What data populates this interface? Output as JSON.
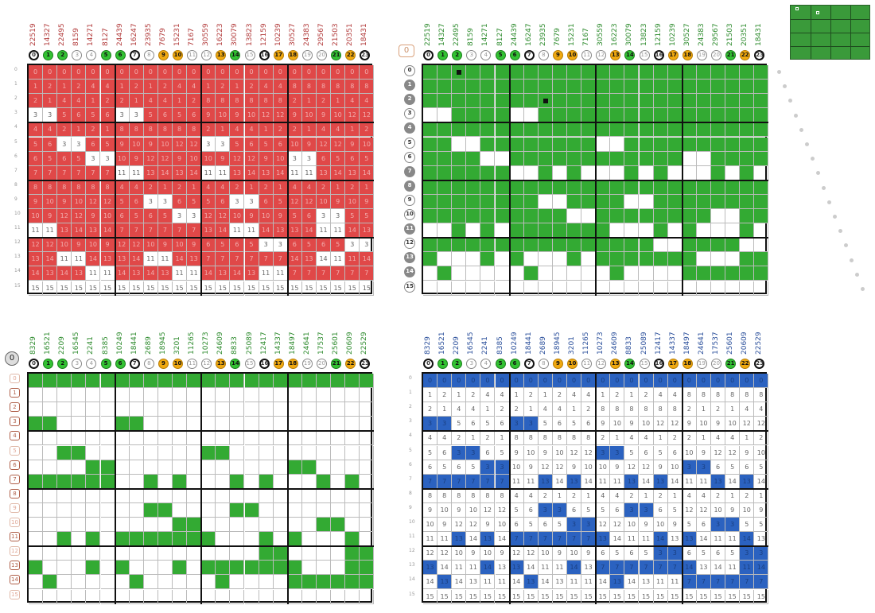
{
  "panels": {
    "tl": {
      "headers": [
        "22519",
        "14327",
        "22495",
        "8159",
        "14271",
        "8127",
        "24439",
        "16247",
        "23935",
        "7679",
        "15231",
        "7167",
        "30559",
        "16223",
        "30079",
        "13823",
        "12159",
        "10239",
        "30527",
        "24383",
        "29567",
        "21503",
        "20351",
        "18431"
      ],
      "headerColor": "#b23b3b"
    },
    "tr": {
      "headers": [
        "22519",
        "14327",
        "22495",
        "8159",
        "14271",
        "8127",
        "24439",
        "16247",
        "23935",
        "7679",
        "15231",
        "7167",
        "30559",
        "16223",
        "30079",
        "13823",
        "12159",
        "10239",
        "30527",
        "24383",
        "29567",
        "21503",
        "20351",
        "18431"
      ],
      "headerColor": "#2e8b2e",
      "box": "0"
    },
    "bl": {
      "headers": [
        "8329",
        "16521",
        "2209",
        "16545",
        "2241",
        "8385",
        "10249",
        "18441",
        "2689",
        "18945",
        "3201",
        "11265",
        "10273",
        "24609",
        "8833",
        "25089",
        "12417",
        "14337",
        "18497",
        "24641",
        "17537",
        "25601",
        "20609",
        "22529"
      ],
      "headerColor": "#2e8b2e",
      "circle": "0"
    },
    "br": {
      "headers": [
        "8329",
        "16521",
        "2209",
        "16545",
        "2241",
        "8385",
        "10249",
        "18441",
        "2689",
        "18945",
        "3201",
        "11265",
        "10273",
        "24609",
        "8833",
        "25089",
        "12417",
        "14337",
        "18497",
        "24641",
        "17537",
        "25601",
        "20609",
        "22529"
      ],
      "headerColor": "#2a4f9b"
    }
  },
  "colIndex": [
    "0",
    "1",
    "2",
    "3",
    "4",
    "5",
    "6",
    "7",
    "8",
    "9",
    "10",
    "11",
    "12",
    "13",
    "14",
    "15",
    "16",
    "17",
    "18",
    "19",
    "20",
    "21",
    "22",
    "23"
  ],
  "rowIndex": [
    "0",
    "1",
    "2",
    "3",
    "4",
    "5",
    "6",
    "7",
    "8",
    "9",
    "10",
    "11",
    "12",
    "13",
    "14",
    "15"
  ],
  "grid": [
    [
      "0",
      "0",
      "0",
      "0",
      "0",
      "0",
      "0",
      "0",
      "0",
      "0",
      "0",
      "0",
      "0",
      "0",
      "0",
      "0",
      "0",
      "0",
      "0",
      "0",
      "0",
      "0",
      "0",
      "0"
    ],
    [
      "1",
      "2",
      "1",
      "2",
      "4",
      "4",
      "1",
      "2",
      "1",
      "2",
      "4",
      "4",
      "1",
      "2",
      "1",
      "2",
      "4",
      "4",
      "8",
      "8",
      "8",
      "8",
      "8",
      "8"
    ],
    [
      "2",
      "1",
      "4",
      "4",
      "1",
      "2",
      "2",
      "1",
      "4",
      "4",
      "1",
      "2",
      "8",
      "8",
      "8",
      "8",
      "8",
      "8",
      "2",
      "1",
      "2",
      "1",
      "4",
      "4"
    ],
    [
      "3",
      "3",
      "5",
      "6",
      "5",
      "6",
      "3",
      "3",
      "5",
      "6",
      "5",
      "6",
      "9",
      "10",
      "9",
      "10",
      "12",
      "12",
      "9",
      "10",
      "9",
      "10",
      "12",
      "12"
    ],
    [
      "4",
      "4",
      "2",
      "1",
      "2",
      "1",
      "8",
      "8",
      "8",
      "8",
      "8",
      "8",
      "2",
      "1",
      "4",
      "4",
      "1",
      "2",
      "2",
      "1",
      "4",
      "4",
      "1",
      "2"
    ],
    [
      "5",
      "6",
      "3",
      "3",
      "6",
      "5",
      "9",
      "10",
      "9",
      "10",
      "12",
      "12",
      "3",
      "3",
      "5",
      "6",
      "5",
      "6",
      "10",
      "9",
      "12",
      "12",
      "9",
      "10"
    ],
    [
      "6",
      "5",
      "6",
      "5",
      "3",
      "3",
      "10",
      "9",
      "12",
      "12",
      "9",
      "10",
      "10",
      "9",
      "12",
      "12",
      "9",
      "10",
      "3",
      "3",
      "6",
      "5",
      "6",
      "5"
    ],
    [
      "7",
      "7",
      "7",
      "7",
      "7",
      "7",
      "11",
      "11",
      "13",
      "14",
      "13",
      "14",
      "11",
      "11",
      "13",
      "14",
      "13",
      "14",
      "11",
      "11",
      "13",
      "14",
      "13",
      "14"
    ],
    [
      "8",
      "8",
      "8",
      "8",
      "8",
      "8",
      "4",
      "4",
      "2",
      "1",
      "2",
      "1",
      "4",
      "4",
      "2",
      "1",
      "2",
      "1",
      "4",
      "4",
      "2",
      "1",
      "2",
      "1"
    ],
    [
      "9",
      "10",
      "9",
      "10",
      "12",
      "12",
      "5",
      "6",
      "3",
      "3",
      "6",
      "5",
      "5",
      "6",
      "3",
      "3",
      "6",
      "5",
      "12",
      "12",
      "10",
      "9",
      "10",
      "9"
    ],
    [
      "10",
      "9",
      "12",
      "12",
      "9",
      "10",
      "6",
      "5",
      "6",
      "5",
      "3",
      "3",
      "12",
      "12",
      "10",
      "9",
      "10",
      "9",
      "5",
      "6",
      "3",
      "3",
      "5",
      "5"
    ],
    [
      "11",
      "11",
      "13",
      "14",
      "13",
      "14",
      "7",
      "7",
      "7",
      "7",
      "7",
      "7",
      "13",
      "14",
      "11",
      "11",
      "14",
      "13",
      "13",
      "14",
      "11",
      "11",
      "14",
      "13"
    ],
    [
      "12",
      "12",
      "10",
      "9",
      "10",
      "9",
      "12",
      "12",
      "10",
      "9",
      "10",
      "9",
      "6",
      "5",
      "6",
      "5",
      "3",
      "3",
      "6",
      "5",
      "6",
      "5",
      "3",
      "3"
    ],
    [
      "13",
      "14",
      "11",
      "11",
      "14",
      "13",
      "13",
      "14",
      "11",
      "11",
      "14",
      "13",
      "7",
      "7",
      "7",
      "7",
      "7",
      "7",
      "14",
      "13",
      "14",
      "11",
      "11",
      "14"
    ],
    [
      "14",
      "13",
      "14",
      "13",
      "11",
      "11",
      "14",
      "13",
      "14",
      "13",
      "11",
      "11",
      "14",
      "13",
      "14",
      "13",
      "11",
      "11",
      "7",
      "7",
      "7",
      "7",
      "7",
      "7"
    ],
    [
      "15",
      "15",
      "15",
      "15",
      "15",
      "15",
      "15",
      "15",
      "15",
      "15",
      "15",
      "15",
      "15",
      "15",
      "15",
      "15",
      "15",
      "15",
      "15",
      "15",
      "15",
      "15",
      "15",
      "15"
    ]
  ],
  "colors": {
    "red": "#e04848",
    "green": "#33aa33",
    "blue": "#2b62c0",
    "orange": "#f0a910"
  }
}
